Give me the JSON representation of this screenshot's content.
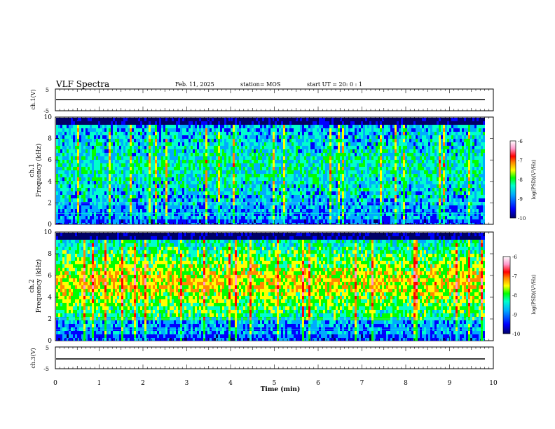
{
  "header": {
    "title": "VLF Spectra",
    "date": "Feb. 11, 2025",
    "station": "station= MOS",
    "start": "start UT =  20: 0  : 1"
  },
  "colors": {
    "spectrum_scale": [
      "#000066",
      "#0000ff",
      "#00aaff",
      "#00ffcc",
      "#00ff00",
      "#ffff00",
      "#ff8800",
      "#ff0000",
      "#ff99cc",
      "#ffffff"
    ]
  },
  "chart_data": [
    {
      "type": "line",
      "name": "ch1-waveform",
      "ylabel": "ch.1(V)",
      "ylim": [
        -5,
        5
      ],
      "yticks": [
        "5",
        "-5"
      ],
      "x": [
        0,
        9.8
      ],
      "y": [
        0,
        0
      ]
    },
    {
      "type": "heatmap",
      "name": "ch1-spectrogram",
      "ylabel_channel": "ch.1",
      "ylabel": "Frequency (kHz)",
      "ylim": [
        0,
        10
      ],
      "yticks": [
        "0",
        "2",
        "4",
        "6",
        "8",
        "10"
      ],
      "xlim": [
        0,
        10
      ],
      "data_extent_min": 9.8,
      "colorbar": {
        "label": "log(PSD)(V²/Hz)",
        "range": [
          -10,
          -6
        ],
        "ticks": [
          "-6",
          "-7",
          "-8",
          "-9",
          "-10"
        ]
      }
    },
    {
      "type": "heatmap",
      "name": "ch2-spectrogram",
      "ylabel_channel": "ch.2",
      "ylabel": "Frequency (kHz)",
      "ylim": [
        0,
        10
      ],
      "yticks": [
        "0",
        "2",
        "4",
        "6",
        "8",
        "10"
      ],
      "xlim": [
        0,
        10
      ],
      "data_extent_min": 9.8,
      "colorbar": {
        "label": "log(PSD)(V²/Hz)",
        "range": [
          -10,
          -6
        ],
        "ticks": [
          "-6",
          "-7",
          "-8",
          "-9",
          "-10"
        ]
      }
    },
    {
      "type": "line",
      "name": "ch3-waveform",
      "ylabel": "ch.3(V)",
      "ylim": [
        -5,
        5
      ],
      "yticks": [
        "5",
        "-5"
      ],
      "x": [
        0,
        9.8
      ],
      "y": [
        0,
        0
      ]
    }
  ],
  "xaxis": {
    "label": "Time  (min)",
    "ticks": [
      "0",
      "1",
      "2",
      "3",
      "4",
      "5",
      "6",
      "7",
      "8",
      "9",
      "10"
    ]
  }
}
